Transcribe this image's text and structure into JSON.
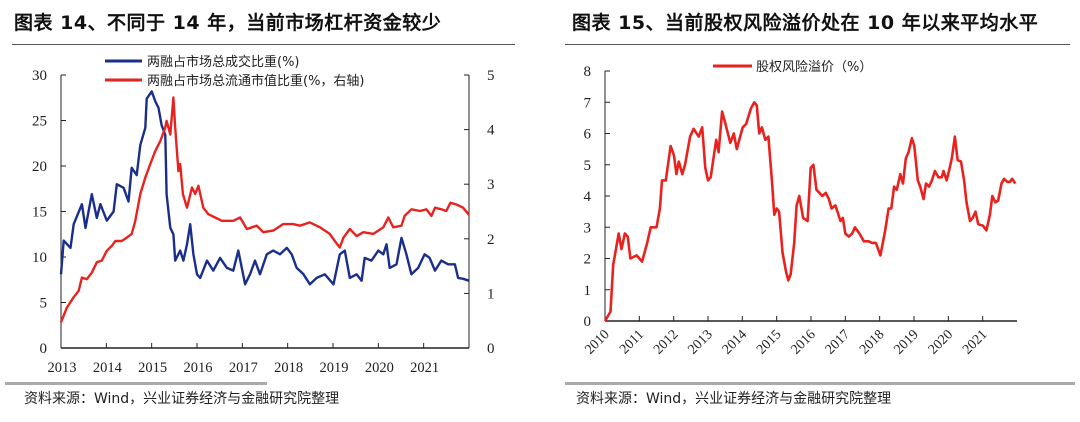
{
  "left": {
    "title": "图表 14、不同于 14 年，当前市场杠杆资金较少",
    "source": "资料来源：Wind，兴业证券经济与金融研究院整理"
  },
  "right": {
    "title": "图表 15、当前股权风险溢价处在 10 年以来平均水平",
    "source": "资料来源：Wind，兴业证券经济与金融研究院整理"
  },
  "chart_data": [
    {
      "type": "line",
      "title": "图表 14、不同于 14 年，当前市场杠杆资金较少",
      "xlim": [
        2013,
        2022
      ],
      "x_ticks": [
        "2013",
        "2014",
        "2015",
        "2016",
        "2017",
        "2018",
        "2019",
        "2020",
        "2021"
      ],
      "ylim": [
        0,
        30
      ],
      "y_ticks": [
        "0",
        "5",
        "10",
        "15",
        "20",
        "25",
        "30"
      ],
      "y2lim": [
        0,
        5
      ],
      "y2_ticks": [
        "0",
        "1",
        "2",
        "3",
        "4",
        "5"
      ],
      "legend_position": "top",
      "grid": false,
      "series": [
        {
          "name": "两融占市场总成交比重(%)",
          "axis": "left",
          "color": "#1a2e8c",
          "x": [
            2013.0,
            2013.06,
            2013.21,
            2013.28,
            2013.46,
            2013.54,
            2013.68,
            2013.79,
            2013.87,
            2014.01,
            2014.16,
            2014.23,
            2014.38,
            2014.49,
            2014.56,
            2014.67,
            2014.75,
            2014.86,
            2014.89,
            2015.0,
            2015.08,
            2015.15,
            2015.22,
            2015.3,
            2015.33,
            2015.41,
            2015.48,
            2015.52,
            2015.63,
            2015.7,
            2015.78,
            2015.85,
            2015.92,
            2016.0,
            2016.07,
            2016.22,
            2016.36,
            2016.51,
            2016.66,
            2016.8,
            2016.91,
            2017.06,
            2017.17,
            2017.28,
            2017.39,
            2017.54,
            2017.68,
            2017.83,
            2017.98,
            2018.09,
            2018.2,
            2018.35,
            2018.49,
            2018.64,
            2018.82,
            2019.01,
            2019.15,
            2019.26,
            2019.37,
            2019.52,
            2019.63,
            2019.7,
            2019.85,
            2020.0,
            2020.11,
            2020.18,
            2020.25,
            2020.4,
            2020.51,
            2020.62,
            2020.73,
            2020.88,
            2021.02,
            2021.13,
            2021.25,
            2021.39,
            2021.54,
            2021.69,
            2021.76,
            2021.87,
            2022.0
          ],
          "y": [
            8.1,
            11.8,
            11.0,
            13.6,
            15.8,
            13.2,
            16.9,
            14.3,
            15.8,
            14.0,
            15.0,
            18.0,
            17.6,
            16.1,
            19.8,
            19.0,
            22.3,
            24.2,
            27.4,
            28.2,
            27.1,
            26.4,
            24.5,
            23.4,
            16.9,
            13.2,
            12.5,
            9.6,
            10.7,
            9.6,
            11.4,
            13.6,
            10.3,
            8.1,
            7.7,
            9.6,
            8.5,
            9.9,
            8.8,
            8.5,
            10.7,
            7.0,
            8.1,
            9.6,
            8.1,
            10.3,
            10.7,
            10.3,
            11.0,
            10.3,
            8.8,
            8.1,
            7.0,
            7.7,
            8.1,
            7.0,
            10.3,
            10.7,
            7.7,
            8.1,
            7.4,
            9.9,
            9.6,
            10.7,
            10.3,
            11.4,
            8.8,
            9.2,
            12.1,
            10.3,
            8.1,
            8.8,
            10.3,
            9.9,
            8.5,
            9.6,
            9.2,
            9.2,
            7.7,
            7.6,
            7.4
          ]
        },
        {
          "name": "两融占市场总流通市值比重(%，右轴)",
          "axis": "right",
          "color": "#e8231f",
          "x": [
            2013.0,
            2013.13,
            2013.28,
            2013.39,
            2013.46,
            2013.57,
            2013.68,
            2013.79,
            2013.9,
            2014.01,
            2014.12,
            2014.2,
            2014.34,
            2014.45,
            2014.56,
            2014.64,
            2014.75,
            2014.86,
            2014.97,
            2015.08,
            2015.19,
            2015.3,
            2015.33,
            2015.41,
            2015.48,
            2015.52,
            2015.59,
            2015.63,
            2015.69,
            2015.78,
            2015.89,
            2015.96,
            2016.03,
            2016.14,
            2016.25,
            2016.4,
            2016.55,
            2016.8,
            2016.95,
            2017.1,
            2017.32,
            2017.46,
            2017.68,
            2017.9,
            2018.12,
            2018.27,
            2018.49,
            2018.71,
            2018.93,
            2019.04,
            2019.15,
            2019.23,
            2019.37,
            2019.52,
            2019.67,
            2019.89,
            2020.11,
            2020.22,
            2020.33,
            2020.51,
            2020.58,
            2020.73,
            2020.92,
            2021.06,
            2021.17,
            2021.25,
            2021.39,
            2021.5,
            2021.59,
            2021.72,
            2021.87,
            2022.0
          ],
          "y": [
            0.47,
            0.74,
            0.93,
            1.05,
            1.29,
            1.26,
            1.38,
            1.57,
            1.6,
            1.78,
            1.87,
            1.96,
            1.96,
            2.02,
            2.09,
            2.33,
            2.82,
            3.12,
            3.37,
            3.61,
            3.79,
            4.04,
            4.16,
            3.91,
            4.59,
            4.04,
            3.24,
            3.37,
            2.82,
            2.57,
            2.94,
            2.82,
            2.97,
            2.57,
            2.45,
            2.39,
            2.33,
            2.33,
            2.39,
            2.18,
            2.24,
            2.12,
            2.15,
            2.27,
            2.27,
            2.24,
            2.3,
            2.21,
            2.09,
            1.96,
            1.84,
            2.02,
            2.18,
            2.05,
            2.12,
            2.09,
            2.21,
            2.39,
            2.21,
            2.24,
            2.42,
            2.54,
            2.51,
            2.54,
            2.42,
            2.57,
            2.54,
            2.51,
            2.66,
            2.63,
            2.57,
            2.44
          ]
        }
      ]
    },
    {
      "type": "line",
      "title": "图表 15、当前股权风险溢价处在 10 年以来平均水平",
      "xlim": [
        2010,
        2022
      ],
      "x_ticks": [
        "2010",
        "2011",
        "2012",
        "2013",
        "2014",
        "2015",
        "2016",
        "2017",
        "2018",
        "2019",
        "2020",
        "2021"
      ],
      "ylim": [
        0,
        8
      ],
      "y_ticks": [
        "0",
        "1",
        "2",
        "3",
        "4",
        "5",
        "6",
        "7",
        "8"
      ],
      "legend_position": "top",
      "grid": false,
      "series": [
        {
          "name": "股权风险溢价（%）",
          "color": "#e8231f",
          "x": [
            2010.0,
            2010.16,
            2010.24,
            2010.4,
            2010.48,
            2010.58,
            2010.66,
            2010.74,
            2010.92,
            2011.08,
            2011.23,
            2011.33,
            2011.5,
            2011.6,
            2011.66,
            2011.77,
            2011.91,
            2012.01,
            2012.08,
            2012.15,
            2012.25,
            2012.33,
            2012.48,
            2012.58,
            2012.73,
            2012.83,
            2012.92,
            2013.0,
            2013.08,
            2013.24,
            2013.31,
            2013.41,
            2013.51,
            2013.65,
            2013.75,
            2013.84,
            2014.01,
            2014.11,
            2014.25,
            2014.35,
            2014.42,
            2014.49,
            2014.57,
            2014.67,
            2014.76,
            2014.86,
            2014.93,
            2015.0,
            2015.07,
            2015.17,
            2015.27,
            2015.34,
            2015.41,
            2015.51,
            2015.58,
            2015.66,
            2015.77,
            2015.9,
            2015.99,
            2016.07,
            2016.16,
            2016.33,
            2016.43,
            2016.52,
            2016.6,
            2016.71,
            2016.86,
            2016.93,
            2017.0,
            2017.1,
            2017.2,
            2017.28,
            2017.41,
            2017.54,
            2017.68,
            2017.78,
            2017.89,
            2018.02,
            2018.16,
            2018.26,
            2018.34,
            2018.42,
            2018.5,
            2018.6,
            2018.68,
            2018.76,
            2018.84,
            2018.94,
            2019.01,
            2019.11,
            2019.18,
            2019.28,
            2019.35,
            2019.44,
            2019.52,
            2019.61,
            2019.71,
            2019.81,
            2019.86,
            2019.95,
            2020.02,
            2020.1,
            2020.19,
            2020.27,
            2020.37,
            2020.46,
            2020.53,
            2020.63,
            2020.71,
            2020.79,
            2020.87,
            2021.01,
            2021.11,
            2021.21,
            2021.28,
            2021.37,
            2021.45,
            2021.55,
            2021.62,
            2021.72,
            2021.79,
            2021.86,
            2021.95
          ],
          "y": [
            0.0,
            0.3,
            1.8,
            2.8,
            2.3,
            2.8,
            2.7,
            2.0,
            2.1,
            1.9,
            2.5,
            3.0,
            3.0,
            3.6,
            4.5,
            4.5,
            5.6,
            5.3,
            4.7,
            5.1,
            4.7,
            5.0,
            5.9,
            6.15,
            5.9,
            6.2,
            4.9,
            4.5,
            4.6,
            5.8,
            5.4,
            6.7,
            6.3,
            5.7,
            6.0,
            5.5,
            6.2,
            6.3,
            6.8,
            7.0,
            6.9,
            6.0,
            6.2,
            5.8,
            5.9,
            4.5,
            3.4,
            3.6,
            3.5,
            2.2,
            1.6,
            1.3,
            1.5,
            2.5,
            3.7,
            4.0,
            3.3,
            3.2,
            4.9,
            5.0,
            4.2,
            4.0,
            4.1,
            3.9,
            3.6,
            3.7,
            3.2,
            3.3,
            2.8,
            2.7,
            2.8,
            3.0,
            2.8,
            2.55,
            2.55,
            2.5,
            2.5,
            2.1,
            2.9,
            3.6,
            3.6,
            4.3,
            4.2,
            4.7,
            4.4,
            5.2,
            5.4,
            5.85,
            5.6,
            4.5,
            4.3,
            3.9,
            4.4,
            4.3,
            4.5,
            4.8,
            4.6,
            4.6,
            4.8,
            4.5,
            4.8,
            5.2,
            5.9,
            5.15,
            5.1,
            4.5,
            3.8,
            3.2,
            3.3,
            3.5,
            3.1,
            3.05,
            2.9,
            3.4,
            4.0,
            3.8,
            3.85,
            4.4,
            4.55,
            4.45,
            4.45,
            4.55,
            4.4
          ]
        }
      ]
    }
  ]
}
